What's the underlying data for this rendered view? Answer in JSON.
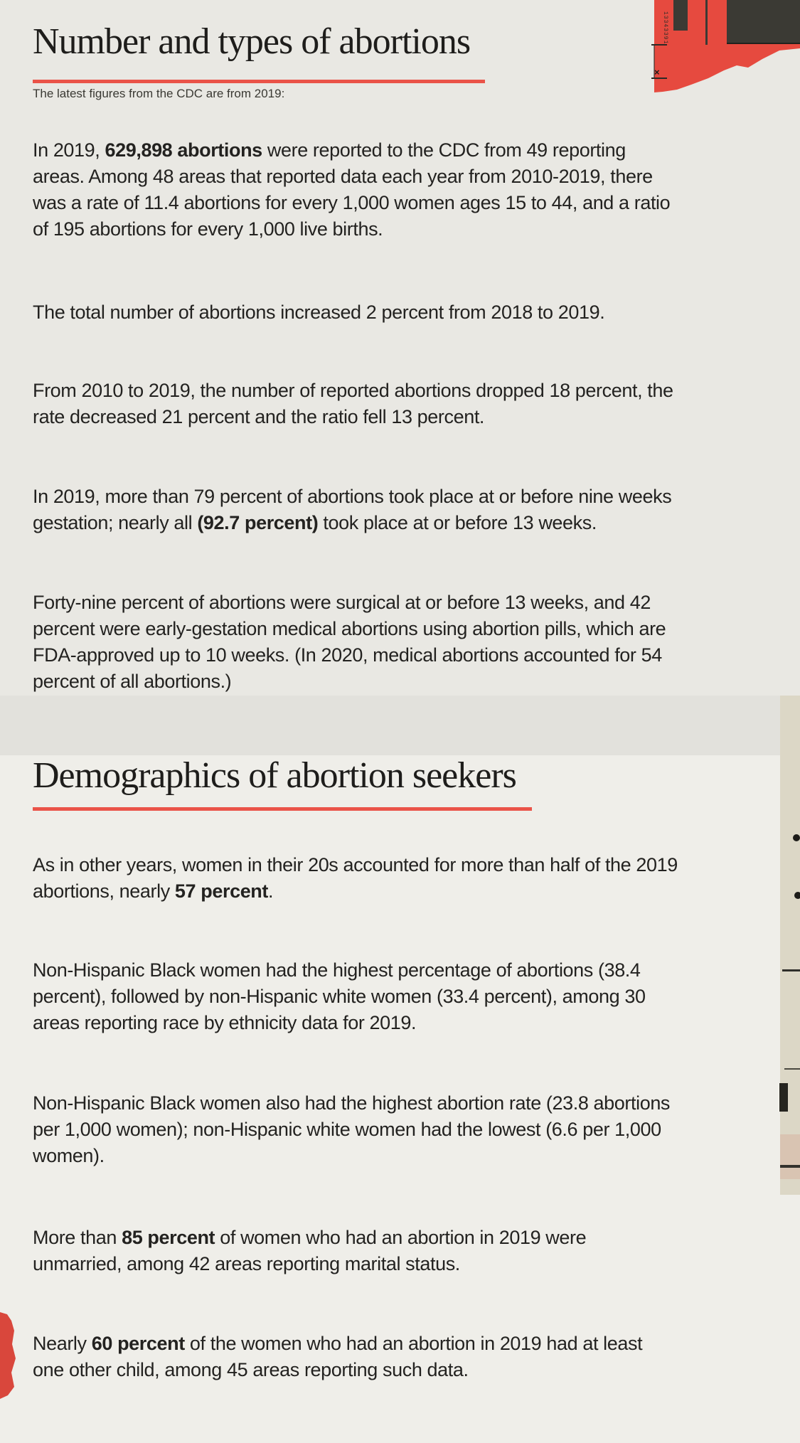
{
  "page": {
    "accent_red": "#ea5348",
    "collage_red": "#e64a3f",
    "dark_block": "#3b3a34",
    "strip_beige": "#dcd7c6",
    "strip_pink": "#d9c4b2",
    "ink": "#232220"
  },
  "decor": {
    "collage_number": "13343391",
    "close_glyph": "×"
  },
  "section1": {
    "title": "Number and types of abortions",
    "subtitle": "The latest figures from the CDC are from 2019:",
    "paragraphs": [
      [
        {
          "t": "In 2019, ",
          "b": false
        },
        {
          "t": "629,898 abortions",
          "b": true
        },
        {
          "t": " were reported to the CDC from 49 reporting\nareas. Among 48 areas that reported data each year from 2010-2019, there\nwas a rate of 11.4 abortions for every 1,000 women ages 15 to 44, and a ratio\nof 195 abortions for every 1,000 live births.",
          "b": false
        }
      ],
      [
        {
          "t": "The total number of abortions increased 2 percent from 2018 to 2019.",
          "b": false
        }
      ],
      [
        {
          "t": "From 2010 to 2019, the number of reported abortions dropped 18 percent, the\nrate decreased 21 percent and the ratio fell 13 percent.",
          "b": false
        }
      ],
      [
        {
          "t": "In 2019, more than 79 percent of abortions took place at or before nine weeks\ngestation; nearly all ",
          "b": false
        },
        {
          "t": "(92.7 percent)",
          "b": true
        },
        {
          "t": " took place at or before 13 weeks.",
          "b": false
        }
      ],
      [
        {
          "t": "Forty-nine percent of abortions were surgical at or before 13 weeks, and 42\npercent were early-gestation medical abortions using abortion pills, which are\nFDA-approved up to 10 weeks. (In 2020, medical abortions accounted for 54\npercent of all abortions.)",
          "b": false
        }
      ]
    ]
  },
  "section2": {
    "title": "Demographics of abortion seekers",
    "paragraphs": [
      [
        {
          "t": "As in other years, women in their 20s accounted for more than half of the 2019\nabortions, nearly ",
          "b": false
        },
        {
          "t": "57 percent",
          "b": true
        },
        {
          "t": ".",
          "b": false
        }
      ],
      [
        {
          "t": "Non-Hispanic Black women had the highest percentage of abortions (38.4\npercent), followed by non-Hispanic white women (33.4 percent), among 30\nareas reporting race by ethnicity data for 2019.",
          "b": false
        }
      ],
      [
        {
          "t": "Non-Hispanic Black women also had the highest abortion rate (23.8 abortions\nper 1,000 women); non-Hispanic white women had the lowest (6.6 per 1,000\nwomen).",
          "b": false
        }
      ],
      [
        {
          "t": "More than ",
          "b": false
        },
        {
          "t": "85 percent",
          "b": true
        },
        {
          "t": " of women who had an abortion in 2019 were\nunmarried, among 42 areas reporting marital status.",
          "b": false
        }
      ],
      [
        {
          "t": "Nearly ",
          "b": false
        },
        {
          "t": "60 percent",
          "b": true
        },
        {
          "t": " of the women who had an abortion in 2019 had at least\none other child, among 45 areas reporting such data.",
          "b": false
        }
      ]
    ]
  }
}
